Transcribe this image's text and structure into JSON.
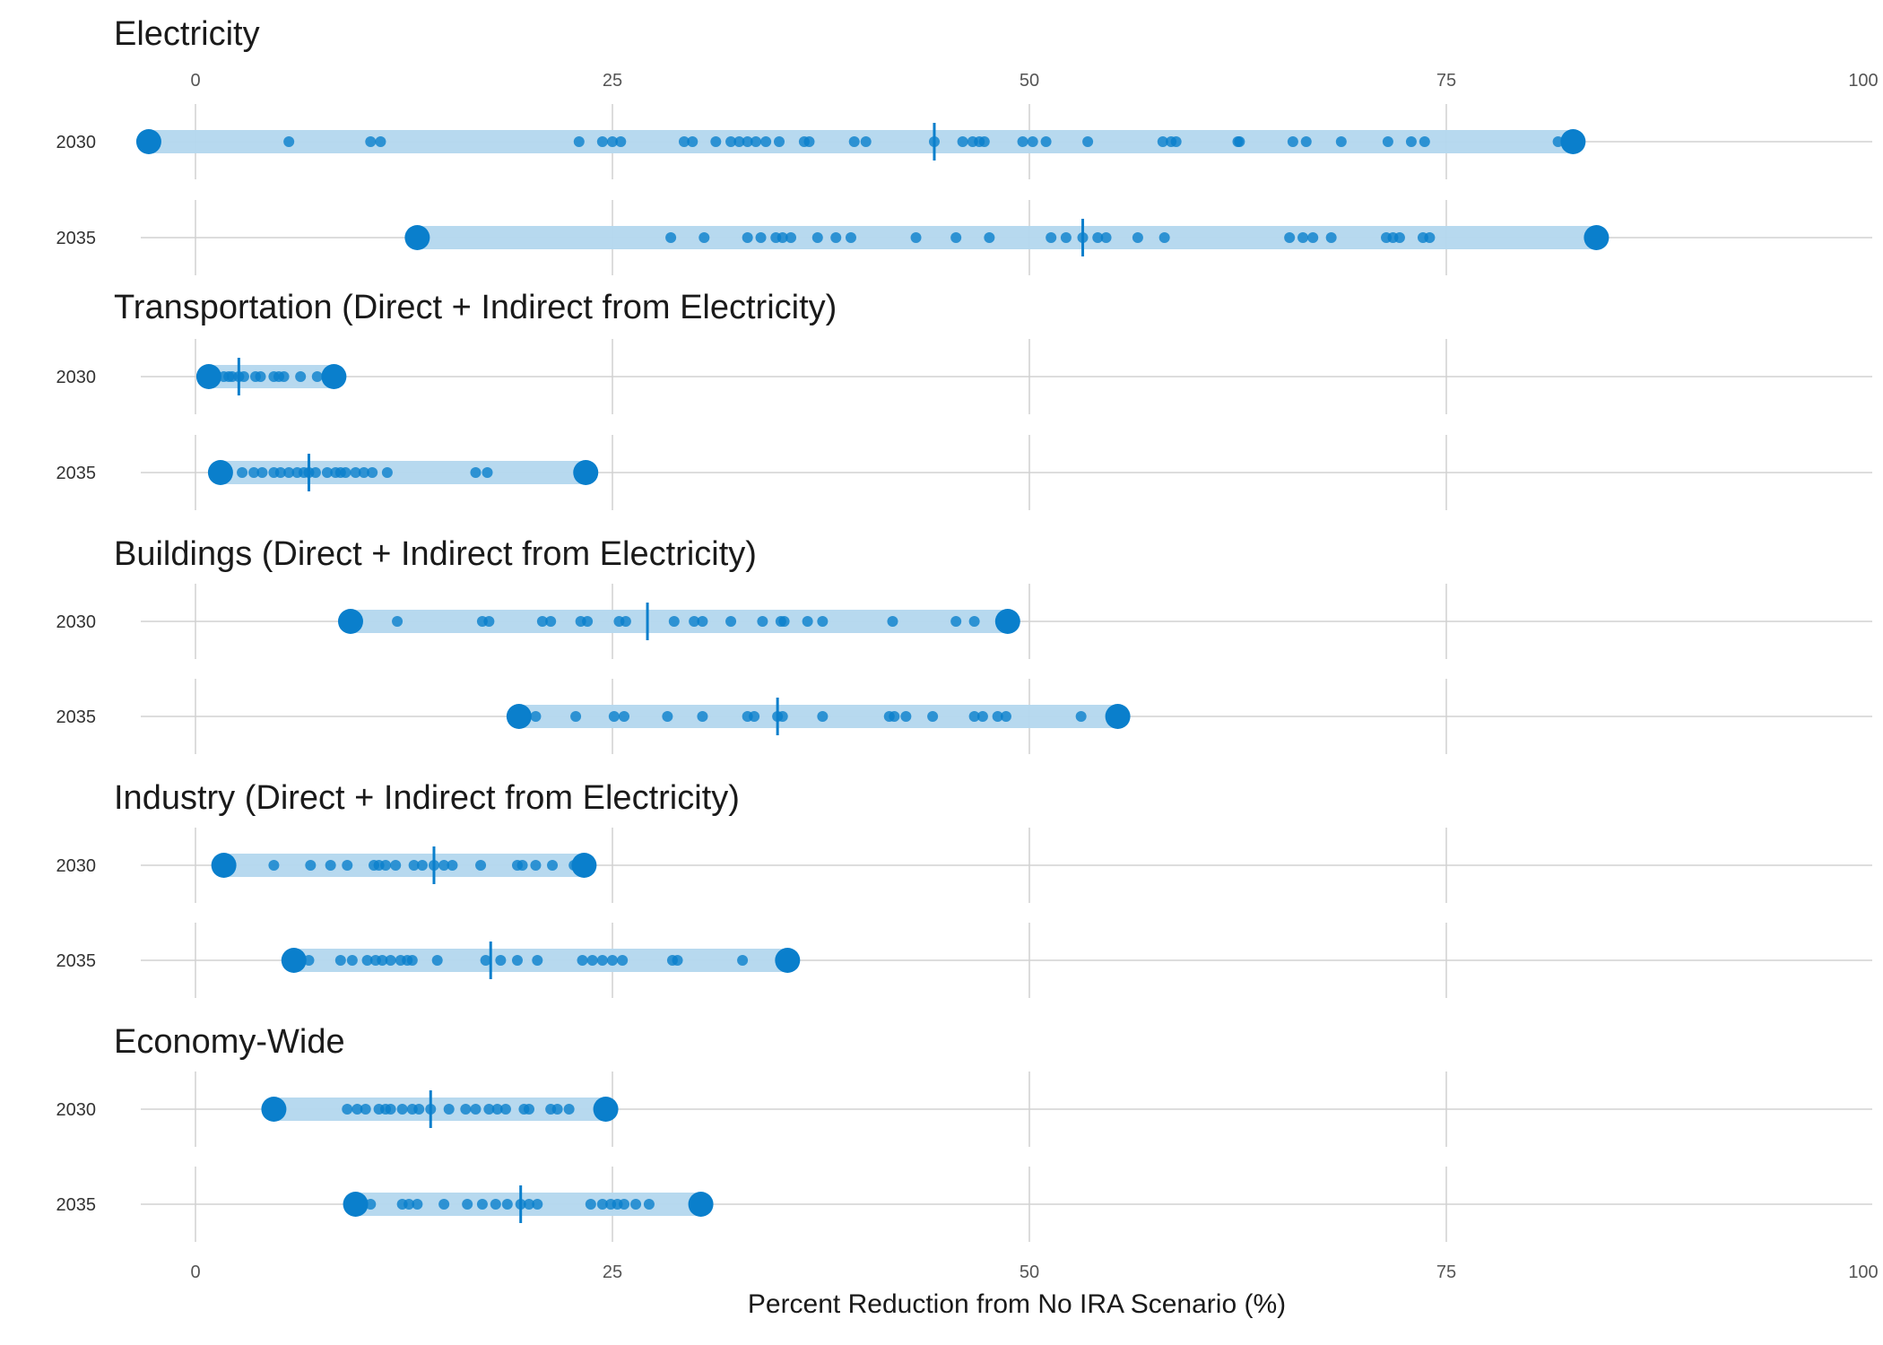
{
  "chart_data": {
    "type": "scatter",
    "xlabel": "Percent Reduction from No IRA Scenario (%)",
    "xlim": [
      -5,
      100
    ],
    "x_ticks": [
      0,
      25,
      50,
      75,
      100
    ],
    "x_tick_labels": [
      "0",
      "25",
      "50",
      "75",
      "100"
    ],
    "colors": {
      "points": "#0a7fcc",
      "range_band": "#b3d7ee",
      "grid": "#dddddd"
    },
    "panels": [
      {
        "title": "Electricity",
        "rows": [
          {
            "year": "2030",
            "min": -2.8,
            "max": 82.6,
            "median": 44.3,
            "points": [
              5.6,
              10.5,
              11.1,
              23.0,
              24.4,
              25.0,
              25.5,
              29.3,
              29.8,
              31.2,
              32.1,
              32.6,
              33.1,
              33.6,
              34.2,
              35.0,
              36.5,
              36.8,
              39.5,
              40.2,
              44.3,
              46.0,
              46.6,
              47.0,
              47.3,
              49.6,
              50.2,
              51.0,
              53.5,
              58.0,
              58.5,
              58.8,
              62.5,
              62.6,
              65.8,
              66.6,
              68.7,
              71.5,
              72.9,
              73.7,
              81.7
            ]
          },
          {
            "year": "2035",
            "min": 13.3,
            "max": 84.0,
            "median": 53.2,
            "points": [
              28.5,
              30.5,
              33.1,
              33.9,
              34.8,
              35.2,
              35.7,
              37.3,
              38.4,
              39.3,
              43.2,
              45.6,
              47.6,
              51.3,
              52.2,
              53.2,
              54.1,
              54.6,
              56.5,
              58.1,
              65.6,
              66.4,
              67.0,
              68.1,
              71.4,
              71.8,
              72.2,
              73.6,
              74.0
            ]
          }
        ]
      },
      {
        "title": "Transportation (Direct + Indirect from Electricity)",
        "rows": [
          {
            "year": "2030",
            "min": 0.8,
            "max": 8.3,
            "median": 2.6,
            "points": [
              1.7,
              2.0,
              2.2,
              2.6,
              2.9,
              3.6,
              3.9,
              4.7,
              5.0,
              5.3,
              6.3,
              7.3
            ]
          },
          {
            "year": "2035",
            "min": 1.5,
            "max": 23.4,
            "median": 6.8,
            "points": [
              2.8,
              3.5,
              4.0,
              4.7,
              5.1,
              5.6,
              6.1,
              6.5,
              6.8,
              7.2,
              7.9,
              8.4,
              8.7,
              9.0,
              9.6,
              10.1,
              10.6,
              11.5,
              16.8,
              17.5
            ]
          }
        ]
      },
      {
        "title": "Buildings (Direct + Indirect from Electricity)",
        "rows": [
          {
            "year": "2030",
            "min": 9.3,
            "max": 48.7,
            "median": 27.1,
            "points": [
              12.1,
              17.2,
              17.6,
              20.8,
              21.3,
              23.1,
              23.5,
              25.4,
              25.8,
              28.7,
              29.9,
              30.4,
              32.1,
              34.0,
              35.1,
              35.3,
              36.7,
              37.6,
              41.8,
              45.6,
              46.7
            ]
          },
          {
            "year": "2035",
            "min": 19.4,
            "max": 55.3,
            "median": 34.9,
            "points": [
              20.4,
              22.8,
              25.1,
              25.7,
              28.3,
              30.4,
              33.1,
              33.5,
              34.9,
              35.2,
              37.6,
              41.6,
              41.9,
              42.6,
              44.2,
              46.7,
              47.2,
              48.1,
              48.6,
              53.1
            ]
          }
        ]
      },
      {
        "title": "Industry (Direct + Indirect from Electricity)",
        "rows": [
          {
            "year": "2030",
            "min": 1.7,
            "max": 23.3,
            "median": 14.3,
            "points": [
              4.7,
              6.9,
              8.1,
              9.1,
              10.7,
              11.0,
              11.4,
              12.0,
              13.1,
              13.6,
              14.3,
              14.9,
              15.4,
              17.1,
              19.3,
              19.6,
              20.4,
              21.4,
              22.7
            ]
          },
          {
            "year": "2035",
            "min": 5.9,
            "max": 35.5,
            "median": 17.7,
            "points": [
              6.8,
              8.7,
              9.4,
              10.3,
              10.8,
              11.2,
              11.7,
              12.3,
              12.7,
              13.0,
              14.5,
              17.4,
              18.3,
              19.3,
              20.5,
              23.2,
              23.8,
              24.4,
              25.0,
              25.6,
              28.6,
              28.9,
              32.8
            ]
          }
        ]
      },
      {
        "title": "Economy-Wide",
        "rows": [
          {
            "year": "2030",
            "min": 4.7,
            "max": 24.6,
            "median": 14.1,
            "points": [
              9.1,
              9.7,
              10.2,
              11.0,
              11.4,
              11.7,
              12.4,
              13.0,
              13.4,
              14.1,
              15.2,
              16.2,
              16.8,
              17.6,
              18.1,
              18.6,
              19.7,
              20.0,
              21.3,
              21.7,
              22.4
            ]
          },
          {
            "year": "2035",
            "min": 9.6,
            "max": 30.3,
            "median": 19.5,
            "points": [
              10.5,
              12.4,
              12.8,
              13.3,
              14.9,
              16.3,
              17.2,
              18.0,
              18.7,
              19.5,
              20.0,
              20.5,
              23.7,
              24.4,
              24.9,
              25.3,
              25.7,
              26.4,
              27.2
            ]
          }
        ]
      }
    ]
  }
}
